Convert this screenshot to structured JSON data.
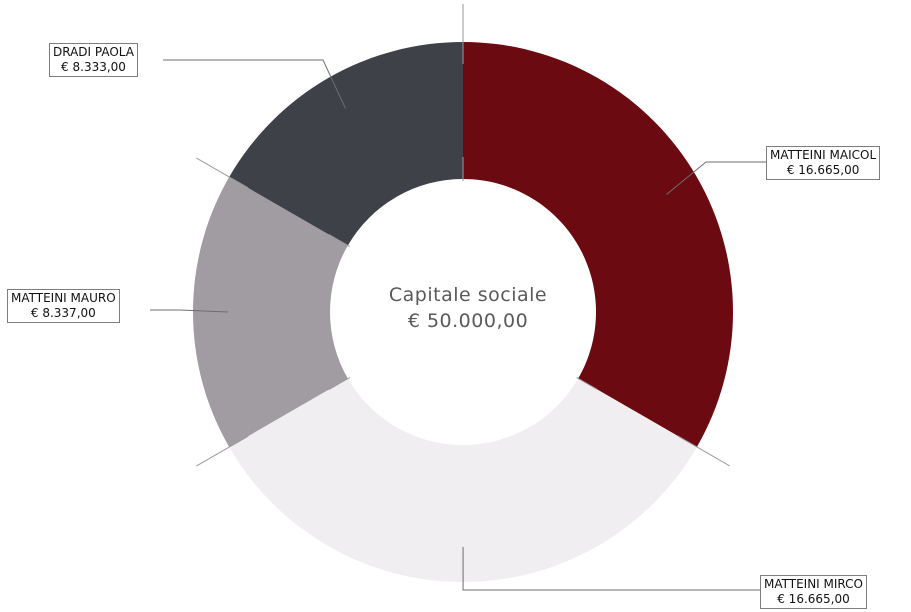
{
  "chart_data": {
    "type": "pie",
    "center_label": {
      "line1": "Capitale sociale",
      "line2": "€ 50.000,00"
    },
    "slices": [
      {
        "name": "MATTEINI MAICOL",
        "value_label": "€ 16.665,00",
        "value": 16665,
        "color": "#6b0a10"
      },
      {
        "name": "MATTEINI MIRCO",
        "value_label": "€ 16.665,00",
        "value": 16665,
        "color": "#f0eef0"
      },
      {
        "name": "MATTEINI MAURO",
        "value_label": "€ 8.337,00",
        "value": 8337,
        "color": "#a19ca2"
      },
      {
        "name": "DRADI PAOLA",
        "value_label": "€ 8.333,00",
        "value": 8333,
        "color": "#3f4149"
      }
    ]
  }
}
